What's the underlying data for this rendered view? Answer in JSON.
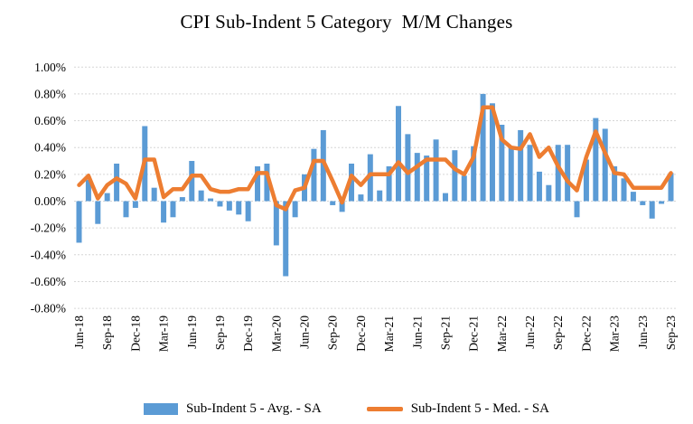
{
  "title": "CPI Sub-Indent 5 Category  M/M Changes",
  "chart_data": {
    "type": "combo-bar-line",
    "title": "CPI Sub-Indent 5 Category  M/M Changes",
    "categories": [
      "Jun-18",
      "Jul-18",
      "Aug-18",
      "Sep-18",
      "Oct-18",
      "Nov-18",
      "Dec-18",
      "Jan-19",
      "Feb-19",
      "Mar-19",
      "Apr-19",
      "May-19",
      "Jun-19",
      "Jul-19",
      "Aug-19",
      "Sep-19",
      "Oct-19",
      "Nov-19",
      "Dec-19",
      "Jan-20",
      "Feb-20",
      "Mar-20",
      "Apr-20",
      "May-20",
      "Jun-20",
      "Jul-20",
      "Aug-20",
      "Sep-20",
      "Oct-20",
      "Nov-20",
      "Dec-20",
      "Jan-21",
      "Feb-21",
      "Mar-21",
      "Apr-21",
      "May-21",
      "Jun-21",
      "Jul-21",
      "Aug-21",
      "Sep-21",
      "Oct-21",
      "Nov-21",
      "Dec-21",
      "Jan-22",
      "Feb-22",
      "Mar-22",
      "Apr-22",
      "May-22",
      "Jun-22",
      "Jul-22",
      "Aug-22",
      "Sep-22",
      "Oct-22",
      "Nov-22",
      "Dec-22",
      "Jan-23",
      "Feb-23",
      "Mar-23",
      "Apr-23",
      "May-23",
      "Jun-23",
      "Jul-23",
      "Aug-23",
      "Sep-23"
    ],
    "series": [
      {
        "name": "Sub-Indent 5 - Avg. - SA",
        "type": "bar",
        "color": "#5B9BD5",
        "values": [
          -0.31,
          0.16,
          -0.17,
          0.06,
          0.28,
          -0.12,
          -0.05,
          0.56,
          0.1,
          -0.16,
          -0.12,
          0.03,
          0.3,
          0.08,
          0.02,
          -0.04,
          -0.07,
          -0.1,
          -0.15,
          0.26,
          0.28,
          -0.33,
          -0.56,
          -0.12,
          0.2,
          0.39,
          0.53,
          -0.03,
          -0.08,
          0.28,
          0.05,
          0.35,
          0.08,
          0.26,
          0.71,
          0.5,
          0.36,
          0.34,
          0.46,
          0.06,
          0.38,
          0.19,
          0.41,
          0.8,
          0.73,
          0.57,
          0.4,
          0.53,
          0.42,
          0.22,
          0.12,
          0.42,
          0.42,
          -0.12,
          0.31,
          0.62,
          0.54,
          0.26,
          0.17,
          0.07,
          -0.03,
          -0.13,
          -0.02,
          0.21
        ]
      },
      {
        "name": "Sub-Indent 5 - Med. - SA",
        "type": "line",
        "color": "#ED7D31",
        "values": [
          0.12,
          0.19,
          0.02,
          0.12,
          0.17,
          0.13,
          0.02,
          0.31,
          0.31,
          0.03,
          0.09,
          0.09,
          0.19,
          0.19,
          0.09,
          0.07,
          0.07,
          0.09,
          0.09,
          0.21,
          0.21,
          -0.03,
          -0.06,
          0.08,
          0.1,
          0.3,
          0.3,
          0.15,
          -0.01,
          0.19,
          0.12,
          0.2,
          0.2,
          0.2,
          0.29,
          0.21,
          0.26,
          0.31,
          0.31,
          0.31,
          0.24,
          0.2,
          0.33,
          0.7,
          0.7,
          0.46,
          0.4,
          0.39,
          0.5,
          0.33,
          0.4,
          0.26,
          0.15,
          0.08,
          0.33,
          0.52,
          0.36,
          0.21,
          0.2,
          0.1,
          0.1,
          0.1,
          0.1,
          0.21
        ]
      }
    ],
    "y_axis": {
      "min": -0.8,
      "max": 1.0,
      "step": 0.2,
      "tick_labels": [
        "1.00%",
        "0.80%",
        "0.60%",
        "0.40%",
        "0.20%",
        "0.00%",
        "-0.20%",
        "-0.40%",
        "-0.60%",
        "-0.80%"
      ]
    },
    "x_axis": {
      "tick_every": 3,
      "tick_labels": [
        "Jun-18",
        "Sep-18",
        "Dec-18",
        "Mar-19",
        "Jun-19",
        "Sep-19",
        "Dec-19",
        "Mar-20",
        "Jun-20",
        "Sep-20",
        "Dec-20",
        "Mar-21",
        "Jun-21",
        "Sep-21",
        "Dec-21",
        "Mar-22",
        "Jun-22",
        "Sep-22",
        "Dec-22",
        "Mar-23",
        "Jun-23",
        "Sep-23"
      ]
    },
    "grid": true,
    "gridline_color": "#D6D6D6",
    "legend_position": "bottom",
    "background": "#FFFFFF"
  }
}
